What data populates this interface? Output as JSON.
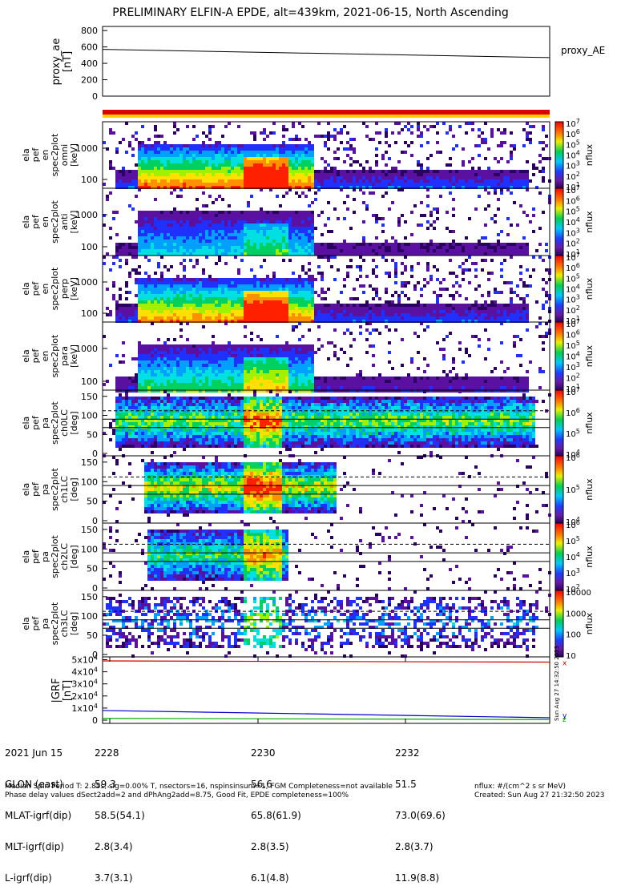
{
  "title": "PRELIMINARY ELFIN-A EPDE, alt=439km, 2021-06-15, North Ascending",
  "panels": {
    "ae": {
      "ylabel": [
        "proxy_ae",
        "[nT]"
      ],
      "legend": "proxy_AE"
    },
    "en1": {
      "ylabel": [
        "ela",
        "pef",
        "en",
        "spec2plot",
        "omni",
        "[keV]"
      ]
    },
    "en2": {
      "ylabel": [
        "ela",
        "pef",
        "en",
        "spec2plot",
        "anti",
        "[keV]"
      ]
    },
    "en3": {
      "ylabel": [
        "ela",
        "pef",
        "en",
        "spec2plot",
        "perp",
        "[keV]"
      ]
    },
    "en4": {
      "ylabel": [
        "ela",
        "pef",
        "en",
        "spec2plot",
        "para",
        "[keV]"
      ]
    },
    "pa0": {
      "ylabel": [
        "ela",
        "pef",
        "pa",
        "spec2plot",
        "ch0LC",
        "[deg]"
      ]
    },
    "pa1": {
      "ylabel": [
        "ela",
        "pef",
        "pa",
        "spec2plot",
        "ch1LC",
        "[deg]"
      ]
    },
    "pa2": {
      "ylabel": [
        "ela",
        "pef",
        "pa",
        "spec2plot",
        "ch2LC",
        "[deg]"
      ]
    },
    "pa3": {
      "ylabel": [
        "ela",
        "pef",
        "pa",
        "spec2plot",
        "ch3LC",
        "[deg]"
      ]
    },
    "brf": {
      "ylabel": [
        "|GRF",
        "[nT]"
      ],
      "legend": [
        "x",
        "y",
        "z"
      ]
    }
  },
  "colorbar_label": "nflux",
  "ephemeris": {
    "date": "2021 Jun 15",
    "times": [
      "2228",
      "2230",
      "2232"
    ],
    "rows": [
      {
        "name": "GLON (east)",
        "values": [
          "59.3",
          "56.6",
          "51.5"
        ]
      },
      {
        "name": "MLAT-igrf(dip)",
        "values": [
          "58.5(54.1)",
          "65.8(61.9)",
          "73.0(69.6)"
        ]
      },
      {
        "name": "MLT-igrf(dip)",
        "values": [
          "2.8(3.4)",
          "2.8(3.5)",
          "2.8(3.7)"
        ]
      },
      {
        "name": "L-igrf(dip)",
        "values": [
          "3.7(3.1)",
          "6.1(4.8)",
          "11.9(8.8)"
        ]
      }
    ]
  },
  "footer": {
    "line1": "Median Spin Period T: 2.85s, sig=0.00% T, nsectors=16, nspinsinsum=1, FGM Completeness=not available",
    "line2": "Phase delay values dSect2add=2 and dPhAng2add=8.75, Good Fit, EPDE completeness=100%",
    "units": "nflux: #/(cm^2 s sr MeV)",
    "created": "Created: Sun Aug 27 21:32:50 2023"
  },
  "created_vertical": "Sun Aug 27 14:32:50 2023",
  "chart_data": [
    {
      "type": "line",
      "name": "proxy_ae",
      "x": [
        "2227.5",
        "2234"
      ],
      "series": [
        {
          "name": "proxy_AE",
          "values": [
            570,
            470
          ]
        }
      ],
      "ylim": [
        0,
        850
      ],
      "yticks": [
        0,
        200,
        400,
        600,
        800
      ]
    },
    {
      "type": "heatmap",
      "name": "energy spectrograms",
      "y_ticks_keV": [
        100,
        1000
      ],
      "colorbar_ticks": [
        "10^1",
        "10^2",
        "10^3",
        "10^4",
        "10^5",
        "10^6",
        "10^7"
      ]
    },
    {
      "type": "heatmap",
      "name": "pitch-angle spectrograms",
      "y_ticks_deg": [
        0,
        50,
        100,
        150
      ],
      "colorbar_ch0": [
        "10^4",
        "10^5",
        "10^6",
        "10^7"
      ],
      "colorbar_ch1": [
        "10^4",
        "10^5",
        "10^6"
      ],
      "colorbar_ch2": [
        "10^2",
        "10^3",
        "10^4",
        "10^5",
        "10^6"
      ],
      "colorbar_ch3": [
        "10",
        "100",
        "1000",
        "10000"
      ]
    },
    {
      "type": "line",
      "name": "|GRF",
      "yticks": [
        "0",
        "1x10^4",
        "2x10^4",
        "3x10^4",
        "4x10^4",
        "5x10^4"
      ],
      "series": [
        {
          "name": "x",
          "values": [
            49000,
            48000
          ]
        },
        {
          "name": "y",
          "values": [
            8000,
            2000
          ]
        },
        {
          "name": "z",
          "values": [
            1500,
            500
          ]
        }
      ]
    }
  ],
  "colors": {
    "red_bar": "#dd0000",
    "yellow_bar": "#ffd200",
    "x_line": "#cc0000",
    "y_line": "#0000cc",
    "z_line": "#00aa00"
  }
}
